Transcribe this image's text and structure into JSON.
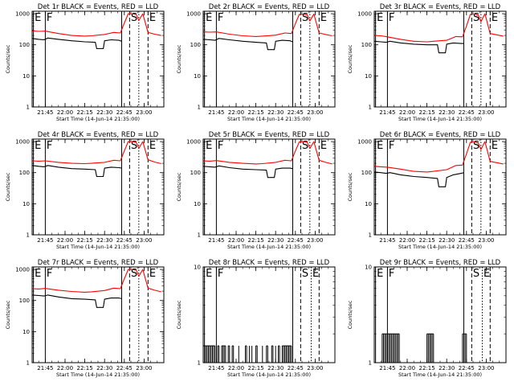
{
  "window": {
    "width": 640,
    "height": 480
  },
  "colors": {
    "events": "#000000",
    "lld": "#ff0000",
    "frame": "#000000"
  },
  "labels": {
    "xlabel": "Start Time (14-Jun-14 21:35:00)",
    "ylabel": "Counts/sec",
    "xticks": [
      "21:45",
      "22:00",
      "22:15",
      "22:30",
      "22:45",
      "23:00"
    ],
    "yticks": [
      "1",
      "10",
      "100",
      "1000"
    ],
    "markers": [
      "E",
      "F",
      "S",
      "E"
    ]
  },
  "chart_data": [
    {
      "type": "line",
      "title": "Det 1r BLACK = Events, RED = LLD",
      "x_unit": "minutes since 21:35:00",
      "xlim": [
        0,
        100
      ],
      "ylim": [
        1,
        1200
      ],
      "yscale": "log",
      "xticks": [
        10,
        25,
        40,
        55,
        70,
        85
      ],
      "markers": [
        {
          "label": "E",
          "x": 1,
          "style": "solid"
        },
        {
          "label": "F",
          "x": 10,
          "style": "solid"
        },
        {
          "label": "S",
          "x": 74,
          "style": "dashed"
        },
        {
          "label": "E",
          "x": 88,
          "style": "dashed"
        }
      ],
      "extra_lines": [
        {
          "x": 68,
          "style": "solid"
        },
        {
          "x": 81,
          "style": "dotted"
        }
      ],
      "series": [
        {
          "name": "Events",
          "color": "#000000",
          "x": [
            0,
            5,
            9,
            12,
            20,
            30,
            40,
            48,
            49,
            54,
            55,
            60,
            66,
            68
          ],
          "y": [
            160,
            150,
            145,
            165,
            150,
            135,
            125,
            120,
            75,
            75,
            135,
            145,
            140,
            130
          ]
        },
        {
          "name": "LLD",
          "color": "#ff0000",
          "x": [
            0,
            5,
            10,
            20,
            30,
            40,
            45,
            55,
            62,
            67,
            70,
            73,
            75,
            79,
            81,
            84,
            88,
            93,
            98
          ],
          "y": [
            280,
            270,
            275,
            230,
            200,
            190,
            195,
            215,
            250,
            240,
            500,
            1000,
            1000,
            950,
            600,
            1000,
            250,
            220,
            200
          ]
        }
      ]
    },
    {
      "type": "line",
      "title": "Det 2r BLACK = Events, RED = LLD",
      "x_unit": "minutes since 21:35:00",
      "xlim": [
        0,
        100
      ],
      "ylim": [
        1,
        1200
      ],
      "yscale": "log",
      "xticks": [
        10,
        25,
        40,
        55,
        70,
        85
      ],
      "markers": [
        {
          "label": "E",
          "x": 1,
          "style": "solid"
        },
        {
          "label": "F",
          "x": 10,
          "style": "solid"
        },
        {
          "label": "S",
          "x": 74,
          "style": "dashed"
        },
        {
          "label": "E",
          "x": 88,
          "style": "dashed"
        }
      ],
      "extra_lines": [
        {
          "x": 68,
          "style": "solid"
        },
        {
          "x": 81,
          "style": "dotted"
        }
      ],
      "series": [
        {
          "name": "Events",
          "color": "#000000",
          "x": [
            0,
            5,
            9,
            12,
            20,
            30,
            40,
            48,
            49,
            54,
            55,
            60,
            66,
            68
          ],
          "y": [
            150,
            145,
            140,
            160,
            145,
            130,
            120,
            115,
            70,
            70,
            130,
            140,
            135,
            125
          ]
        },
        {
          "name": "LLD",
          "color": "#ff0000",
          "x": [
            0,
            5,
            10,
            20,
            30,
            40,
            45,
            55,
            62,
            67,
            70,
            73,
            75,
            79,
            81,
            84,
            88,
            93,
            98
          ],
          "y": [
            260,
            255,
            260,
            220,
            195,
            185,
            190,
            205,
            240,
            230,
            480,
            950,
            980,
            920,
            580,
            980,
            240,
            215,
            195
          ]
        }
      ]
    },
    {
      "type": "line",
      "title": "Det 3r BLACK = Events, RED = LLD",
      "x_unit": "minutes since 21:35:00",
      "xlim": [
        0,
        100
      ],
      "ylim": [
        1,
        1200
      ],
      "yscale": "log",
      "xticks": [
        10,
        25,
        40,
        55,
        70,
        85
      ],
      "markers": [
        {
          "label": "E",
          "x": 1,
          "style": "solid"
        },
        {
          "label": "F",
          "x": 10,
          "style": "solid"
        },
        {
          "label": "S",
          "x": 74,
          "style": "dashed"
        },
        {
          "label": "E",
          "x": 88,
          "style": "dashed"
        }
      ],
      "extra_lines": [
        {
          "x": 68,
          "style": "solid"
        },
        {
          "x": 81,
          "style": "dotted"
        }
      ],
      "series": [
        {
          "name": "Events",
          "color": "#000000",
          "x": [
            0,
            5,
            9,
            12,
            20,
            30,
            40,
            48,
            49,
            54,
            55,
            60,
            66,
            68
          ],
          "y": [
            130,
            125,
            120,
            130,
            115,
            105,
            100,
            100,
            55,
            55,
            105,
            115,
            110,
            110
          ]
        },
        {
          "name": "LLD",
          "color": "#ff0000",
          "x": [
            0,
            5,
            10,
            20,
            30,
            40,
            45,
            55,
            62,
            67,
            70,
            73,
            75,
            79,
            81,
            84,
            88,
            93,
            98
          ],
          "y": [
            200,
            195,
            180,
            150,
            130,
            125,
            130,
            140,
            185,
            180,
            400,
            950,
            1000,
            900,
            550,
            1000,
            230,
            210,
            190
          ]
        }
      ]
    },
    {
      "type": "line",
      "title": "Det 4r BLACK = Events, RED = LLD",
      "x_unit": "minutes since 21:35:00",
      "xlim": [
        0,
        100
      ],
      "ylim": [
        1,
        1200
      ],
      "yscale": "log",
      "xticks": [
        10,
        25,
        40,
        55,
        70,
        85
      ],
      "markers": [
        {
          "label": "E",
          "x": 1,
          "style": "solid"
        },
        {
          "label": "F",
          "x": 10,
          "style": "solid"
        },
        {
          "label": "S",
          "x": 74,
          "style": "dashed"
        },
        {
          "label": "E",
          "x": 88,
          "style": "dashed"
        }
      ],
      "extra_lines": [
        {
          "x": 68,
          "style": "solid"
        },
        {
          "x": 81,
          "style": "dotted"
        }
      ],
      "series": [
        {
          "name": "Events",
          "color": "#000000",
          "x": [
            0,
            5,
            9,
            12,
            20,
            30,
            40,
            48,
            49,
            54,
            55,
            60,
            66,
            68
          ],
          "y": [
            170,
            160,
            155,
            170,
            150,
            135,
            130,
            125,
            75,
            75,
            140,
            150,
            145,
            140
          ]
        },
        {
          "name": "LLD",
          "color": "#ff0000",
          "x": [
            0,
            5,
            10,
            20,
            30,
            40,
            45,
            55,
            62,
            67,
            70,
            73,
            75,
            79,
            81,
            84,
            88,
            93,
            98
          ],
          "y": [
            240,
            235,
            240,
            215,
            200,
            195,
            200,
            215,
            250,
            240,
            500,
            1000,
            1000,
            950,
            600,
            1000,
            260,
            220,
            195
          ]
        }
      ]
    },
    {
      "type": "line",
      "title": "Det 5r BLACK = Events, RED = LLD",
      "x_unit": "minutes since 21:35:00",
      "xlim": [
        0,
        100
      ],
      "ylim": [
        1,
        1200
      ],
      "yscale": "log",
      "xticks": [
        10,
        25,
        40,
        55,
        70,
        85
      ],
      "markers": [
        {
          "label": "E",
          "x": 1,
          "style": "solid"
        },
        {
          "label": "F",
          "x": 10,
          "style": "solid"
        },
        {
          "label": "S",
          "x": 74,
          "style": "dashed"
        },
        {
          "label": "E",
          "x": 88,
          "style": "dashed"
        }
      ],
      "extra_lines": [
        {
          "x": 68,
          "style": "solid"
        },
        {
          "x": 81,
          "style": "dotted"
        }
      ],
      "series": [
        {
          "name": "Events",
          "color": "#000000",
          "x": [
            0,
            5,
            9,
            12,
            20,
            30,
            40,
            48,
            49,
            54,
            55,
            60,
            66,
            68
          ],
          "y": [
            160,
            155,
            150,
            165,
            145,
            130,
            125,
            120,
            70,
            70,
            130,
            140,
            140,
            135
          ]
        },
        {
          "name": "LLD",
          "color": "#ff0000",
          "x": [
            0,
            5,
            10,
            20,
            30,
            40,
            45,
            55,
            62,
            67,
            70,
            73,
            75,
            79,
            81,
            84,
            88,
            93,
            98
          ],
          "y": [
            240,
            235,
            245,
            215,
            200,
            190,
            195,
            215,
            250,
            240,
            500,
            980,
            1000,
            950,
            600,
            1000,
            250,
            215,
            190
          ]
        }
      ]
    },
    {
      "type": "line",
      "title": "Det 6r BLACK = Events, RED = LLD",
      "x_unit": "minutes since 21:35:00",
      "xlim": [
        0,
        100
      ],
      "ylim": [
        1,
        1200
      ],
      "yscale": "log",
      "xticks": [
        10,
        25,
        40,
        55,
        70,
        85
      ],
      "markers": [
        {
          "label": "E",
          "x": 1,
          "style": "solid"
        },
        {
          "label": "F",
          "x": 10,
          "style": "solid"
        },
        {
          "label": "S",
          "x": 74,
          "style": "dashed"
        },
        {
          "label": "E",
          "x": 88,
          "style": "dashed"
        }
      ],
      "extra_lines": [
        {
          "x": 68,
          "style": "solid"
        },
        {
          "x": 81,
          "style": "dotted"
        }
      ],
      "series": [
        {
          "name": "Events",
          "color": "#000000",
          "x": [
            0,
            5,
            9,
            12,
            20,
            30,
            40,
            48,
            49,
            54,
            55,
            60,
            66,
            68
          ],
          "y": [
            105,
            100,
            95,
            100,
            85,
            75,
            70,
            65,
            35,
            35,
            70,
            85,
            95,
            100
          ]
        },
        {
          "name": "LLD",
          "color": "#ff0000",
          "x": [
            0,
            5,
            10,
            20,
            30,
            40,
            45,
            55,
            62,
            67,
            70,
            73,
            75,
            79,
            81,
            84,
            88,
            93,
            98
          ],
          "y": [
            160,
            155,
            150,
            130,
            110,
            105,
            110,
            125,
            170,
            175,
            400,
            950,
            1000,
            900,
            550,
            1000,
            230,
            210,
            190
          ]
        }
      ]
    },
    {
      "type": "line",
      "title": "Det 7r BLACK = Events, RED = LLD",
      "x_unit": "minutes since 21:35:00",
      "xlim": [
        0,
        100
      ],
      "ylim": [
        1,
        1200
      ],
      "yscale": "log",
      "xticks": [
        10,
        25,
        40,
        55,
        70,
        85
      ],
      "markers": [
        {
          "label": "E",
          "x": 1,
          "style": "solid"
        },
        {
          "label": "F",
          "x": 10,
          "style": "solid"
        },
        {
          "label": "S",
          "x": 74,
          "style": "dashed"
        },
        {
          "label": "E",
          "x": 88,
          "style": "dashed"
        }
      ],
      "extra_lines": [
        {
          "x": 68,
          "style": "solid"
        },
        {
          "x": 81,
          "style": "dotted"
        }
      ],
      "series": [
        {
          "name": "Events",
          "color": "#000000",
          "x": [
            0,
            5,
            9,
            12,
            20,
            30,
            40,
            48,
            49,
            54,
            55,
            60,
            66,
            68
          ],
          "y": [
            150,
            145,
            140,
            150,
            130,
            115,
            110,
            105,
            60,
            60,
            110,
            120,
            120,
            115
          ]
        },
        {
          "name": "LLD",
          "color": "#ff0000",
          "x": [
            0,
            5,
            10,
            20,
            30,
            40,
            45,
            55,
            62,
            67,
            70,
            73,
            75,
            79,
            81,
            84,
            88,
            93,
            98
          ],
          "y": [
            240,
            235,
            245,
            215,
            195,
            185,
            190,
            210,
            250,
            240,
            500,
            1000,
            1000,
            950,
            600,
            1000,
            250,
            215,
            190
          ]
        }
      ]
    },
    {
      "type": "line",
      "title": "Det 8r BLACK = Events, RED = LLD",
      "x_unit": "minutes since 21:35:00",
      "xlim": [
        0,
        100
      ],
      "ylim": [
        1,
        10
      ],
      "yscale": "log",
      "xticks": [
        10,
        25,
        40,
        55,
        70,
        85
      ],
      "markers": [
        {
          "label": "E",
          "x": 1,
          "style": "solid"
        },
        {
          "label": "F",
          "x": 10,
          "style": "solid"
        },
        {
          "label": "S",
          "x": 74,
          "style": "dashed"
        },
        {
          "label": "E",
          "x": 82,
          "style": "dotted"
        }
      ],
      "extra_lines": [
        {
          "x": 68,
          "style": "solid"
        },
        {
          "x": 88,
          "style": "dashed"
        }
      ],
      "spike_value": 1.5,
      "series": [
        {
          "name": "Events",
          "color": "#000000",
          "spikes": [
            0,
            1,
            2,
            3,
            4,
            5,
            6,
            7,
            8,
            9,
            11,
            12,
            14,
            15,
            16,
            17,
            19,
            20,
            22,
            23,
            27,
            32,
            33,
            35,
            37,
            40,
            41,
            45,
            48,
            49,
            52,
            53,
            55,
            57,
            58,
            60,
            61,
            62,
            63,
            64,
            65,
            66,
            67
          ]
        }
      ]
    },
    {
      "type": "line",
      "title": "Det 9r BLACK = Events, RED = LLD",
      "x_unit": "minutes since 21:35:00",
      "xlim": [
        0,
        100
      ],
      "ylim": [
        1,
        10
      ],
      "yscale": "log",
      "xticks": [
        10,
        25,
        40,
        55,
        70,
        85
      ],
      "markers": [
        {
          "label": "E",
          "x": 1,
          "style": "solid"
        },
        {
          "label": "F",
          "x": 10,
          "style": "solid"
        },
        {
          "label": "S",
          "x": 74,
          "style": "dashed"
        },
        {
          "label": "E",
          "x": 82,
          "style": "dotted"
        }
      ],
      "extra_lines": [
        {
          "x": 68,
          "style": "solid"
        },
        {
          "x": 88,
          "style": "dashed"
        }
      ],
      "spike_value": 2,
      "series": [
        {
          "name": "Events",
          "color": "#000000",
          "spikes": [
            6,
            7,
            8,
            9,
            10,
            11,
            12,
            13,
            14,
            15,
            16,
            17,
            18,
            19,
            40,
            41,
            42,
            43,
            44,
            45,
            67,
            68,
            69,
            70
          ]
        }
      ]
    }
  ]
}
